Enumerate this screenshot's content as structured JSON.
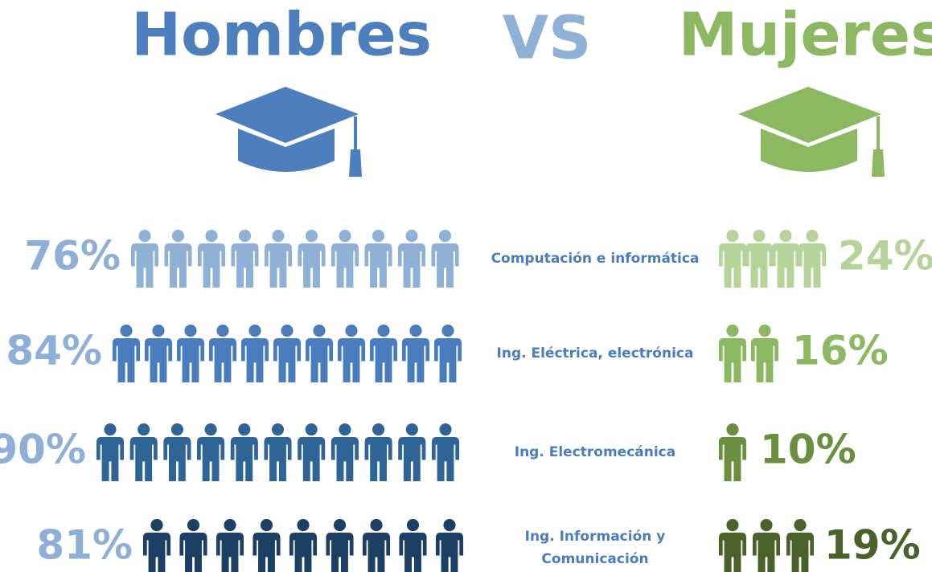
{
  "title_left": "Hombres",
  "vs": "VS",
  "title_right": "Mujeres",
  "rows": [
    {
      "category": [
        "Computación e informática"
      ],
      "men": "76%",
      "women": "24%"
    },
    {
      "category": [
        "Ing. Eléctrica, electrónica"
      ],
      "men": "84%",
      "women": "16%"
    },
    {
      "category": [
        "Ing. Electromecánica"
      ],
      "men": "90%",
      "women": "10%"
    },
    {
      "category": [
        "Ing. Información y",
        "Comunicación"
      ],
      "men": "81%",
      "women": "19%"
    }
  ]
}
